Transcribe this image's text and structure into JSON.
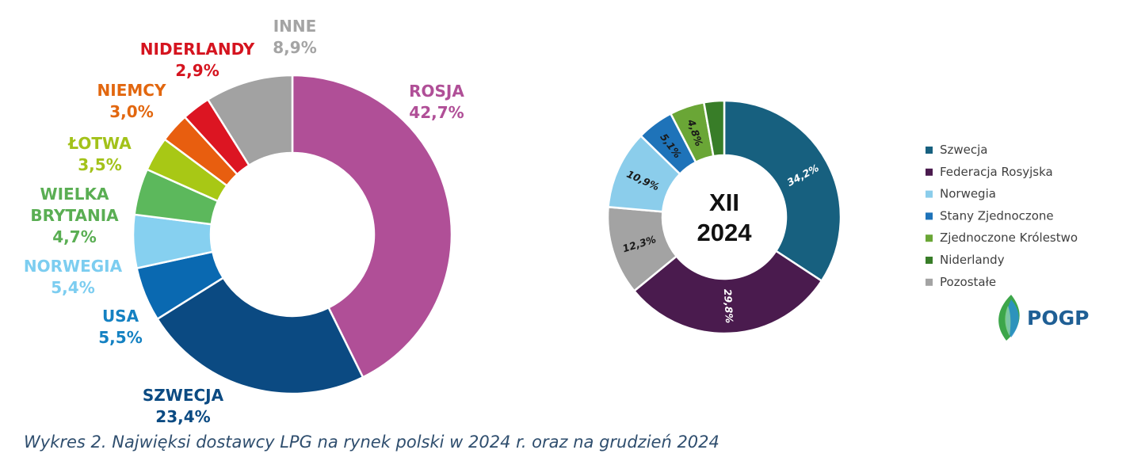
{
  "caption": "Wykres 2. Najwięksi dostawcy LPG na rynek polski w 2024 r. oraz na grudzień 2024",
  "logo": {
    "text": "POGP"
  },
  "chart_data": [
    {
      "type": "pie",
      "donut": true,
      "slices": [
        {
          "label": [
            "ROSJA"
          ],
          "value": 42.7,
          "value_text": "42,7%",
          "color": "#b04f97"
        },
        {
          "label": [
            "SZWECJA"
          ],
          "value": 23.4,
          "value_text": "23,4%",
          "color": "#0b4a82"
        },
        {
          "label": [
            "USA"
          ],
          "value": 5.5,
          "value_text": "5,5%",
          "color": "#0a69b1",
          "label_color": "#1481c2"
        },
        {
          "label": [
            "NORWEGIA"
          ],
          "value": 5.4,
          "value_text": "5,4%",
          "color": "#86d0f0",
          "label_color": "#7ccdf0"
        },
        {
          "label": [
            "WIELKA",
            "BRYTANIA"
          ],
          "value": 4.7,
          "value_text": "4,7%",
          "color": "#5cb85c",
          "label_color": "#5aae53"
        },
        {
          "label": [
            "ŁOTWA"
          ],
          "value": 3.5,
          "value_text": "3,5%",
          "color": "#a8c815",
          "label_color": "#a3c21a"
        },
        {
          "label": [
            "NIEMCY"
          ],
          "value": 3.0,
          "value_text": "3,0%",
          "color": "#e85e0f",
          "label_color": "#e2670f"
        },
        {
          "label": [
            "NIDERLANDY"
          ],
          "value": 2.9,
          "value_text": "2,9%",
          "color": "#dc1522",
          "label_color": "#d5141f"
        },
        {
          "label": [
            "INNE"
          ],
          "value": 8.9,
          "value_text": "8,9%",
          "color": "#a2a2a2",
          "label_color": "#a4a4a4"
        }
      ]
    },
    {
      "type": "pie",
      "donut": true,
      "center_text": [
        "XII",
        "2024"
      ],
      "slices": [
        {
          "label": "Szwecja",
          "value": 34.2,
          "value_text": "34,2%",
          "color": "#17607f",
          "text_color": "#ffffff"
        },
        {
          "label": "Federacja Rosyjska",
          "value": 29.8,
          "value_text": "29,8%",
          "color": "#4a1b4e",
          "text_color": "#ffffff"
        },
        {
          "label": "Norwegia",
          "value": 10.9,
          "value_text": "10,9%",
          "color": "#8bcdeb",
          "text_color": "#1a1a1a"
        },
        {
          "label": "Stany Zjednoczone",
          "value": 5.1,
          "value_text": "5,1%",
          "color": "#1e73b9",
          "text_color": "#1a1a1a"
        },
        {
          "label": "Zjednoczone Królestwo",
          "value": 4.8,
          "value_text": "4,8%",
          "color": "#6aa636",
          "text_color": "#1a1a1a"
        },
        {
          "label": "Niderlandy",
          "value": 2.8,
          "value_text": "",
          "color": "#387d28",
          "text_color": "#1a1a1a"
        },
        {
          "label": "Pozostałe",
          "value": 12.3,
          "value_text": "12,3%",
          "color": "#a3a3a3",
          "text_color": "#1a1a1a",
          "order": "before_norwegia"
        }
      ],
      "legend": {
        "placement": "right"
      }
    }
  ]
}
